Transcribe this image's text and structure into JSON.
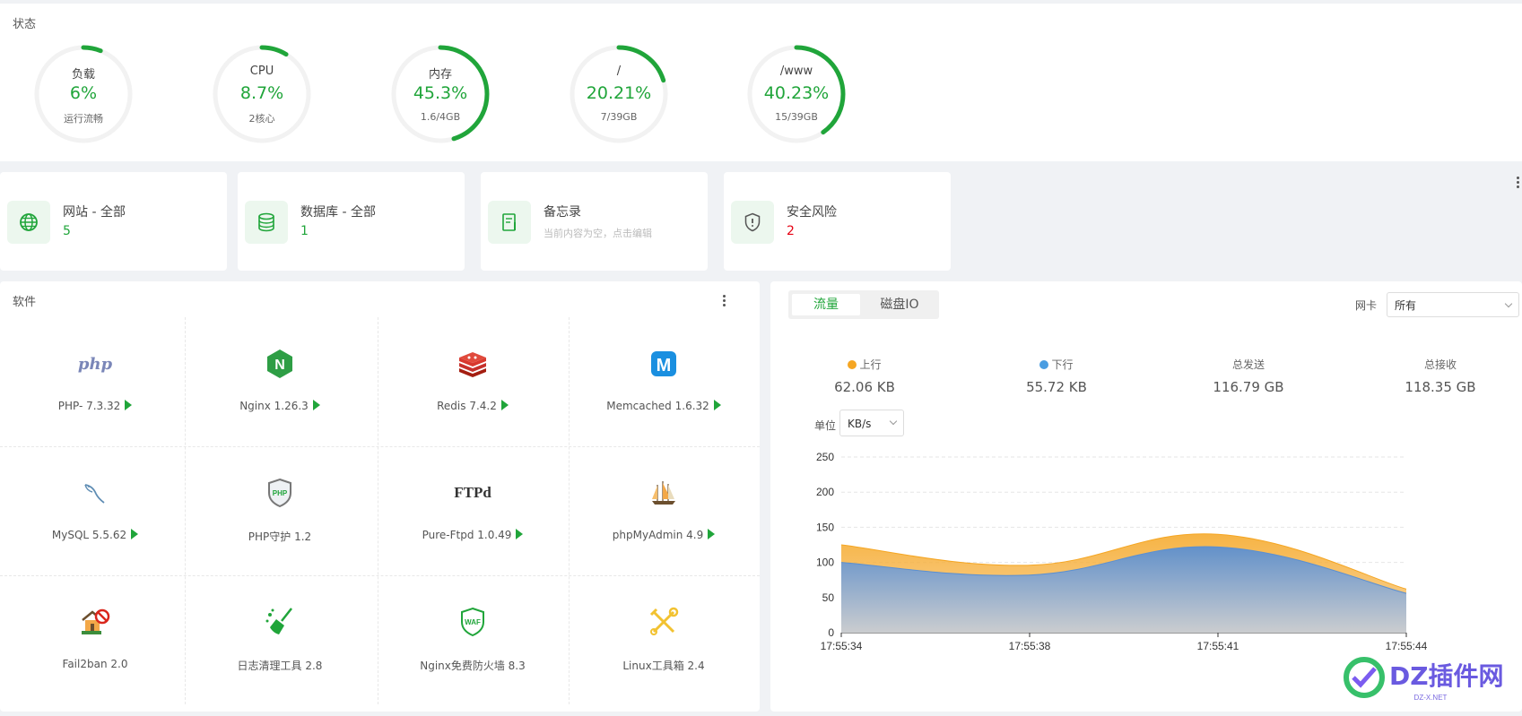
{
  "status": {
    "title": "状态",
    "gauges": [
      {
        "label": "负载",
        "value": "6%",
        "sub": "运行流畅",
        "percent": 6
      },
      {
        "label": "CPU",
        "value": "8.7%",
        "sub": "2核心",
        "percent": 8.7
      },
      {
        "label": "内存",
        "value": "45.3%",
        "sub": "1.6/4GB",
        "percent": 45.3
      },
      {
        "label": "/",
        "value": "20.21%",
        "sub": "7/39GB",
        "percent": 20.21
      },
      {
        "label": "/www",
        "value": "40.23%",
        "sub": "15/39GB",
        "percent": 40.23
      }
    ]
  },
  "overview": [
    {
      "title": "网站 - 全部",
      "value": "5",
      "icon": "globe-icon"
    },
    {
      "title": "数据库 - 全部",
      "value": "1",
      "icon": "database-icon"
    },
    {
      "title": "备忘录",
      "value": "当前内容为空，点击编辑",
      "icon": "memo-icon"
    },
    {
      "title": "安全风险",
      "value": "2",
      "icon": "shield-icon"
    }
  ],
  "software": {
    "title": "软件",
    "items": [
      {
        "name": "PHP- 7.3.32",
        "icon": "php-icon",
        "runnable": true
      },
      {
        "name": "Nginx 1.26.3",
        "icon": "nginx-icon",
        "runnable": true
      },
      {
        "name": "Redis 7.4.2",
        "icon": "redis-icon",
        "runnable": true
      },
      {
        "name": "Memcached 1.6.32",
        "icon": "memcached-icon",
        "runnable": true
      },
      {
        "name": "MySQL 5.5.62",
        "icon": "mysql-icon",
        "runnable": true
      },
      {
        "name": "PHP守护 1.2",
        "icon": "php-guard-icon",
        "runnable": false
      },
      {
        "name": "Pure-Ftpd 1.0.49",
        "icon": "ftp-icon",
        "runnable": true
      },
      {
        "name": "phpMyAdmin 4.9",
        "icon": "phpmyadmin-icon",
        "runnable": true
      },
      {
        "name": "Fail2ban 2.0",
        "icon": "fail2ban-icon",
        "runnable": false
      },
      {
        "name": "日志清理工具 2.8",
        "icon": "log-clean-icon",
        "runnable": false
      },
      {
        "name": "Nginx免费防火墙 8.3",
        "icon": "waf-icon",
        "runnable": false
      },
      {
        "name": "Linux工具箱 2.4",
        "icon": "toolbox-icon",
        "runnable": false
      }
    ],
    "icon_text": {
      "php": "php",
      "nginx": "N",
      "memcached": "M",
      "php_guard": "PHP",
      "ftp": "FTPd",
      "waf": "WAF"
    }
  },
  "traffic": {
    "tabs": [
      "流量",
      "磁盘IO"
    ],
    "nic_label": "网卡",
    "nic_value": "所有",
    "stats": [
      {
        "label": "上行",
        "value": "62.06 KB",
        "color": "#f5a623"
      },
      {
        "label": "下行",
        "value": "55.72 KB",
        "color": "#4a9de1"
      },
      {
        "label": "总发送",
        "value": "116.79 GB"
      },
      {
        "label": "总接收",
        "value": "118.35 GB"
      }
    ],
    "unit_label": "单位",
    "unit_value": "KB/s"
  },
  "chart_data": {
    "type": "area",
    "x": [
      "17:55:34",
      "17:55:38",
      "17:55:41",
      "17:55:44"
    ],
    "series": [
      {
        "name": "上行",
        "values": [
          125,
          96,
          140,
          62
        ],
        "color": "#f5a623"
      },
      {
        "name": "下行",
        "values": [
          100,
          82,
          122,
          56
        ],
        "color": "#5b8fd0"
      }
    ],
    "ylim": [
      0,
      250
    ],
    "yticks": [
      0,
      50,
      100,
      150,
      200,
      250
    ],
    "grid": true
  },
  "watermark": {
    "text": "DZ插件网",
    "sub": "DZ-X.NET"
  }
}
